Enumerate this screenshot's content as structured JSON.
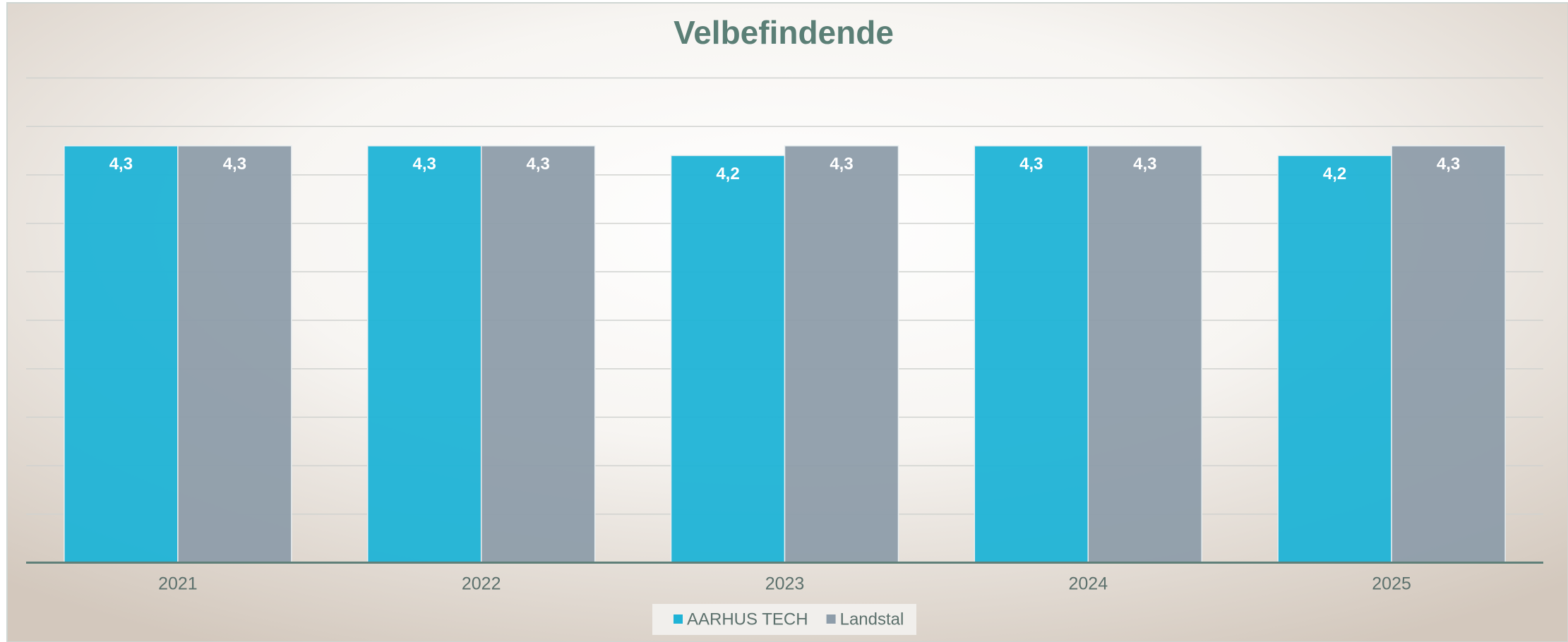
{
  "chart_data": {
    "type": "bar",
    "title": "Velbefindende",
    "categories": [
      "2021",
      "2022",
      "2023",
      "2024",
      "2025"
    ],
    "series": [
      {
        "name": "AARHUS TECH",
        "color": "#1fb3d6",
        "values": [
          4.3,
          4.3,
          4.2,
          4.3,
          4.2
        ],
        "value_labels": [
          "4,3",
          "4,3",
          "4,2",
          "4,3",
          "4,2"
        ]
      },
      {
        "name": "Landstal",
        "color": "#8e9daa",
        "values": [
          4.3,
          4.3,
          4.3,
          4.3,
          4.3
        ],
        "value_labels": [
          "4,3",
          "4,3",
          "4,3",
          "4,3",
          "4,3"
        ]
      }
    ],
    "ylim": [
      0,
      5
    ],
    "yticks": [
      0,
      0.5,
      1,
      1.5,
      2,
      2.5,
      3,
      3.5,
      4,
      4.5,
      5
    ],
    "grid": true,
    "legend": "bottom"
  }
}
